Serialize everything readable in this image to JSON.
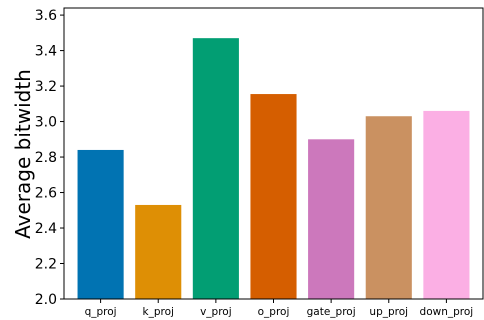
{
  "chart_data": {
    "type": "bar",
    "title": "",
    "xlabel": "",
    "ylabel": "Average bitwidth",
    "categories": [
      "q_proj",
      "k_proj",
      "v_proj",
      "o_proj",
      "gate_proj",
      "up_proj",
      "down_proj"
    ],
    "values": [
      2.84,
      2.53,
      3.47,
      3.155,
      2.9,
      3.03,
      3.06
    ],
    "colors": [
      "#0173B2",
      "#DE8F05",
      "#029E73",
      "#D55E00",
      "#CC78BC",
      "#CA9161",
      "#FBAFE4"
    ],
    "ylim": [
      2.0,
      3.64
    ],
    "yticks": [
      "2.0",
      "2.2",
      "2.4",
      "2.6",
      "2.8",
      "3.0",
      "3.2",
      "3.4",
      "3.6"
    ],
    "grid": false,
    "legend": false
  }
}
